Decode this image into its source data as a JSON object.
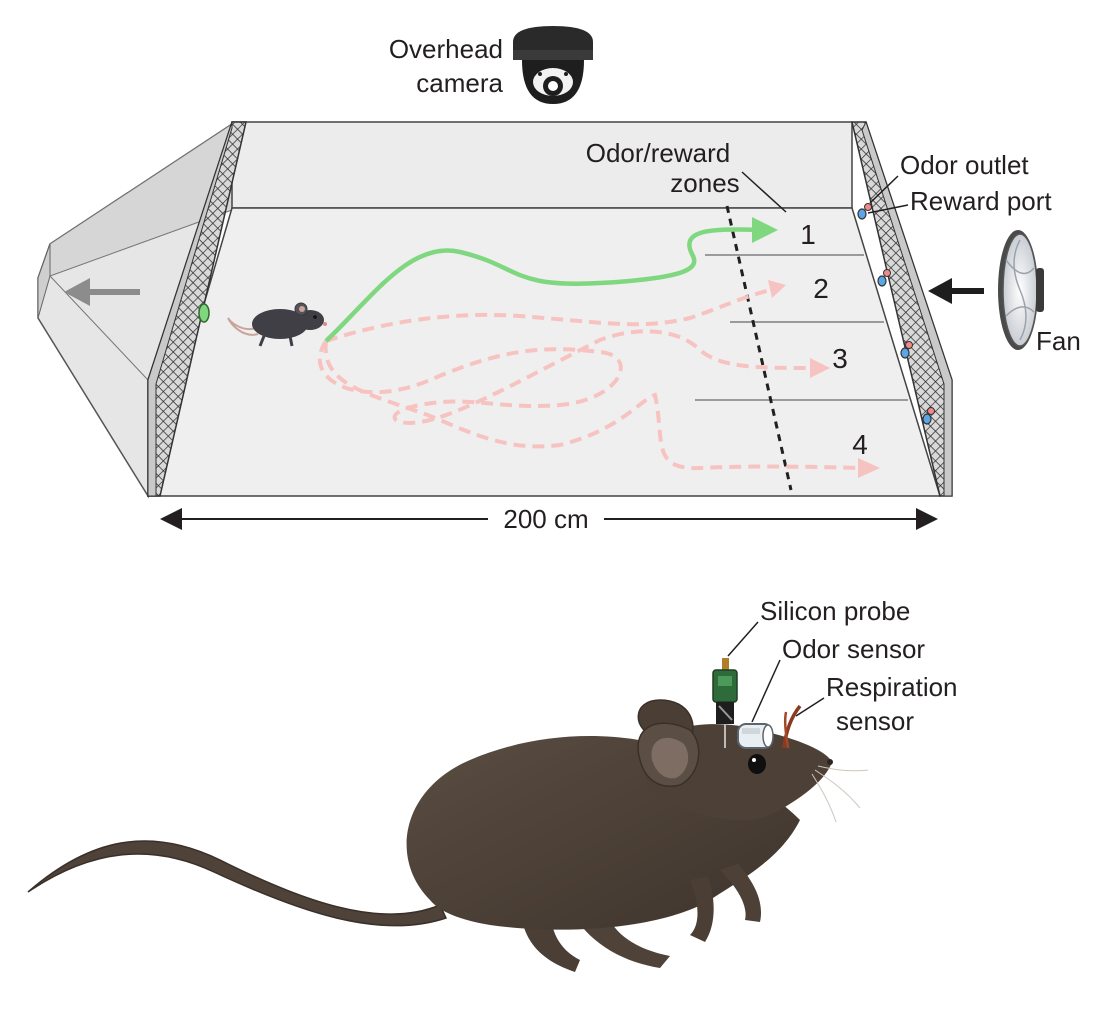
{
  "camera": {
    "label_line1": "Overhead",
    "label_line2": "camera"
  },
  "arena": {
    "zones_label_line1": "Odor/reward",
    "zones_label_line2": "zones",
    "odor_outlet_label": "Odor outlet",
    "reward_port_label": "Reward port",
    "fan_label": "Fan",
    "zone_numbers": [
      "1",
      "2",
      "3",
      "4"
    ],
    "width_label": "200 cm"
  },
  "mouse_implant": {
    "silicon_probe_label": "Silicon probe",
    "odor_sensor_label": "Odor sensor",
    "respiration_label_line1": "Respiration",
    "respiration_label_line2": "sensor"
  },
  "colors": {
    "successful_path": "#7fd77f",
    "failed_paths": "#f7c3c0",
    "odor_outlet": "#f08a8a",
    "reward_port": "#5aa6e6",
    "mouse_fur": "#4d4137",
    "mesh": "#3a3a3a"
  },
  "icons": [
    "camera-icon",
    "fan-icon",
    "mouse-icon",
    "arrow-left-icon",
    "double-arrow-icon"
  ]
}
